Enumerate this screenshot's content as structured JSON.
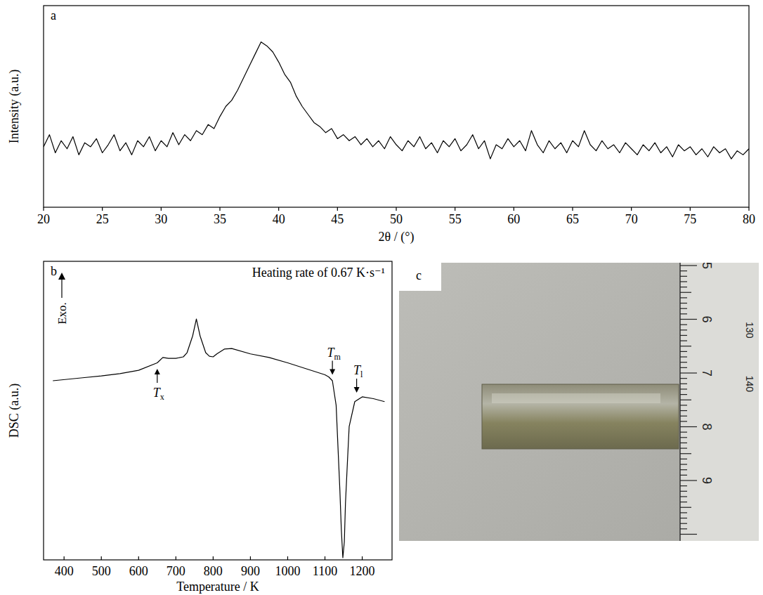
{
  "chart_data": [
    {
      "type": "line",
      "panel": "a",
      "x_label": "2θ / (°)",
      "y_label": "Intensity (a.u.)",
      "xlim": [
        20,
        80
      ],
      "xticks": [
        20,
        25,
        30,
        35,
        40,
        45,
        50,
        55,
        60,
        65,
        70,
        75,
        80
      ],
      "ylim": [
        0,
        100
      ],
      "tick_labels": "x",
      "series": [
        {
          "color": "#000000",
          "x": [
            20,
            20.5,
            21,
            21.5,
            22,
            22.5,
            23,
            23.5,
            24,
            24.5,
            25,
            25.5,
            26,
            26.5,
            27,
            27.5,
            28,
            28.5,
            29,
            29.5,
            30,
            30.5,
            31,
            31.5,
            32,
            32.5,
            33,
            33.5,
            34,
            34.5,
            35,
            35.5,
            36,
            36.5,
            37,
            37.5,
            38,
            38.5,
            39,
            39.5,
            40,
            40.5,
            41,
            41.5,
            42,
            42.5,
            43,
            43.5,
            44,
            44.5,
            45,
            45.5,
            46,
            46.5,
            47,
            47.5,
            48,
            48.5,
            49,
            49.5,
            50,
            50.5,
            51,
            51.5,
            52,
            52.5,
            53,
            53.5,
            54,
            54.5,
            55,
            55.5,
            56,
            56.5,
            57,
            57.5,
            58,
            58.5,
            59,
            59.5,
            60,
            60.5,
            61,
            61.5,
            62,
            62.5,
            63,
            63.5,
            64,
            64.5,
            65,
            65.5,
            66,
            66.5,
            67,
            67.5,
            68,
            68.5,
            69,
            69.5,
            70,
            70.5,
            71,
            71.5,
            72,
            72.5,
            73,
            73.5,
            74,
            74.5,
            75,
            75.5,
            76,
            76.5,
            77,
            77.5,
            78,
            78.5,
            79,
            79.5,
            80
          ],
          "values": [
            30,
            36,
            27,
            33,
            29,
            35,
            26,
            32,
            30,
            34,
            27,
            31,
            36,
            28,
            32,
            26,
            33,
            30,
            35,
            28,
            33,
            30,
            37,
            31,
            36,
            33,
            38,
            36,
            41,
            39,
            45,
            50,
            53,
            58,
            64,
            70,
            76,
            82,
            80,
            77,
            72,
            66,
            62,
            55,
            50,
            46,
            42,
            40,
            37,
            39,
            34,
            36,
            33,
            35,
            31,
            34,
            30,
            33,
            29,
            35,
            31,
            28,
            33,
            30,
            35,
            29,
            32,
            27,
            33,
            30,
            34,
            28,
            31,
            36,
            29,
            33,
            24,
            31,
            29,
            34,
            30,
            33,
            28,
            38,
            31,
            27,
            33,
            29,
            32,
            27,
            33,
            30,
            38,
            31,
            28,
            33,
            29,
            31,
            27,
            32,
            29,
            26,
            31,
            28,
            32,
            27,
            30,
            25,
            31,
            28,
            30,
            26,
            29,
            25,
            30,
            27,
            29,
            24,
            28,
            26,
            29
          ]
        }
      ]
    },
    {
      "type": "line",
      "panel": "b",
      "title": "Heating rate of 0.67 K·s⁻¹",
      "x_label": "Temperature / K",
      "y_label": "DSC (a.u.)",
      "exo_label": "Exo.",
      "xlim": [
        345,
        1280
      ],
      "xticks": [
        400,
        500,
        600,
        700,
        800,
        900,
        1000,
        1100,
        1200
      ],
      "ylim": [
        0,
        100
      ],
      "tick_labels": "x",
      "series": [
        {
          "color": "#000000",
          "x": [
            370,
            450,
            500,
            550,
            600,
            650,
            665,
            680,
            700,
            720,
            730,
            745,
            755,
            765,
            780,
            790,
            800,
            810,
            830,
            850,
            900,
            950,
            1000,
            1050,
            1100,
            1110,
            1120,
            1130,
            1140,
            1144,
            1148,
            1152,
            1155,
            1160,
            1165,
            1180,
            1200,
            1230,
            1260
          ],
          "values": [
            60,
            61,
            61.6,
            62.4,
            63.5,
            66,
            67.8,
            67.5,
            67.5,
            68,
            69.4,
            75,
            80.7,
            75,
            69.4,
            68.2,
            68,
            69,
            70.6,
            70.8,
            69,
            67.8,
            66,
            64,
            62,
            61.3,
            60,
            51.8,
            23.5,
            10,
            0.7,
            6,
            18.8,
            32,
            44.7,
            53,
            54.6,
            54,
            53
          ]
        }
      ],
      "annotations": [
        {
          "text": "T",
          "sub": "x",
          "x": 650,
          "y": 64,
          "arrow": "up"
        },
        {
          "text": "T",
          "sub": "m",
          "x": 1120,
          "y": 62,
          "arrow": "down"
        },
        {
          "text": "T",
          "sub": "l",
          "x": 1185,
          "y": 56,
          "arrow": "down"
        }
      ]
    }
  ],
  "photo": {
    "panel": "c",
    "ruler_cm_labels": [
      "5",
      "6",
      "7",
      "8",
      "9"
    ],
    "ruler_mm_labels": [
      "130",
      "140"
    ]
  }
}
